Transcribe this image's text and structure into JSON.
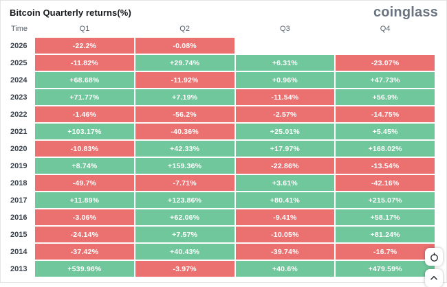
{
  "header": {
    "title": "Bitcoin Quarterly returns(%)",
    "logo_text": "coinglass"
  },
  "table": {
    "time_header": "Time",
    "columns": [
      "Q1",
      "Q2",
      "Q3",
      "Q4"
    ],
    "rows": [
      {
        "year": "2026",
        "cells": [
          "-22.2%",
          "-0.08%",
          null,
          null
        ]
      },
      {
        "year": "2025",
        "cells": [
          "-11.82%",
          "+29.74%",
          "+6.31%",
          "-23.07%"
        ]
      },
      {
        "year": "2024",
        "cells": [
          "+68.68%",
          "-11.92%",
          "+0.96%",
          "+47.73%"
        ]
      },
      {
        "year": "2023",
        "cells": [
          "+71.77%",
          "+7.19%",
          "-11.54%",
          "+56.9%"
        ]
      },
      {
        "year": "2022",
        "cells": [
          "-1.46%",
          "-56.2%",
          "-2.57%",
          "-14.75%"
        ]
      },
      {
        "year": "2021",
        "cells": [
          "+103.17%",
          "-40.36%",
          "+25.01%",
          "+5.45%"
        ]
      },
      {
        "year": "2020",
        "cells": [
          "-10.83%",
          "+42.33%",
          "+17.97%",
          "+168.02%"
        ]
      },
      {
        "year": "2019",
        "cells": [
          "+8.74%",
          "+159.36%",
          "-22.86%",
          "-13.54%"
        ]
      },
      {
        "year": "2018",
        "cells": [
          "-49.7%",
          "-7.71%",
          "+3.61%",
          "-42.16%"
        ]
      },
      {
        "year": "2017",
        "cells": [
          "+11.89%",
          "+123.86%",
          "+80.41%",
          "+215.07%"
        ]
      },
      {
        "year": "2016",
        "cells": [
          "-3.06%",
          "+62.06%",
          "-9.41%",
          "+58.17%"
        ]
      },
      {
        "year": "2015",
        "cells": [
          "-24.14%",
          "+7.57%",
          "-10.05%",
          "+81.24%"
        ]
      },
      {
        "year": "2014",
        "cells": [
          "-37.42%",
          "+40.43%",
          "-39.74%",
          "-16.7%"
        ]
      },
      {
        "year": "2013",
        "cells": [
          "+539.96%",
          "-3.97%",
          "+40.6%",
          "+479.59%"
        ]
      }
    ]
  },
  "colors": {
    "positive_cell": "#6FC79B",
    "negative_cell": "#EB7171",
    "logo": "#6A7380"
  },
  "floating_buttons": [
    {
      "icon": "timer-icon"
    },
    {
      "icon": "chevron-up-icon"
    }
  ],
  "chart_data": {
    "type": "heatmap",
    "title": "Bitcoin Quarterly returns(%)",
    "categories": [
      "Q1",
      "Q2",
      "Q3",
      "Q4"
    ],
    "series": [
      {
        "name": "2026",
        "values": [
          -22.2,
          -0.08,
          null,
          null
        ]
      },
      {
        "name": "2025",
        "values": [
          -11.82,
          29.74,
          6.31,
          -23.07
        ]
      },
      {
        "name": "2024",
        "values": [
          68.68,
          -11.92,
          0.96,
          47.73
        ]
      },
      {
        "name": "2023",
        "values": [
          71.77,
          7.19,
          -11.54,
          56.9
        ]
      },
      {
        "name": "2022",
        "values": [
          -1.46,
          -56.2,
          -2.57,
          -14.75
        ]
      },
      {
        "name": "2021",
        "values": [
          103.17,
          -40.36,
          25.01,
          5.45
        ]
      },
      {
        "name": "2020",
        "values": [
          -10.83,
          42.33,
          17.97,
          168.02
        ]
      },
      {
        "name": "2019",
        "values": [
          8.74,
          159.36,
          -22.86,
          -13.54
        ]
      },
      {
        "name": "2018",
        "values": [
          -49.7,
          -7.71,
          3.61,
          -42.16
        ]
      },
      {
        "name": "2017",
        "values": [
          11.89,
          123.86,
          80.41,
          215.07
        ]
      },
      {
        "name": "2016",
        "values": [
          -3.06,
          62.06,
          -9.41,
          58.17
        ]
      },
      {
        "name": "2015",
        "values": [
          -24.14,
          7.57,
          -10.05,
          81.24
        ]
      },
      {
        "name": "2014",
        "values": [
          -37.42,
          40.43,
          -39.74,
          -16.7
        ]
      },
      {
        "name": "2013",
        "values": [
          539.96,
          -3.97,
          40.6,
          479.59
        ]
      }
    ],
    "legend": "none",
    "color_rule": "positive=green, negative=red"
  }
}
